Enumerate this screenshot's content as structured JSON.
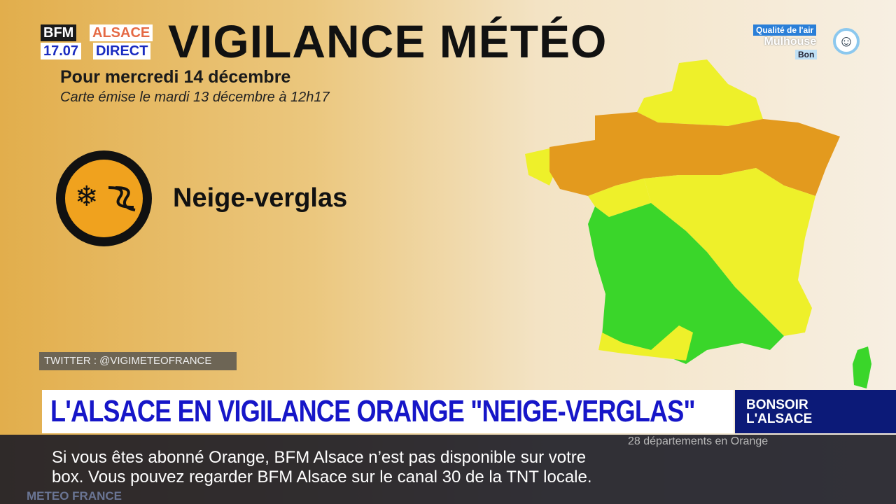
{
  "header": {
    "title": "VIGILANCE MÉTÉO",
    "subtitle": "Pour mercredi 14 décembre",
    "issued": "Carte émise le mardi 13 décembre à 12h17"
  },
  "logo": {
    "brand": "BFM",
    "region": "ALSACE",
    "time": "17.07",
    "live": "DIRECT"
  },
  "air_quality": {
    "label": "Qualité de l'air",
    "city": "Mulhouse",
    "level": "Bon",
    "icon": "smiley-icon"
  },
  "hazard": {
    "label": "Neige-verglas",
    "icon": "snow-ice-icon",
    "color": "#f0a21e"
  },
  "source": "TWITTER : @VIGIMETEOFRANCE",
  "map": {
    "caption": "28 départements en Orange",
    "colors": {
      "orange": "#e39a1e",
      "yellow": "#eef02a",
      "green": "#3ad62a"
    }
  },
  "banner": {
    "headline": "L'ALSACE EN VIGILANCE ORANGE \"NEIGE-VERGLAS\"",
    "show": "BONSOIR L'ALSACE"
  },
  "ticker": {
    "line1": "Si vous êtes abonné Orange, BFM Alsace n’est pas disponible sur votre",
    "line2": "box. Vous pouvez regarder BFM Alsace sur le canal 30 de la TNT locale."
  },
  "watermark": "METEO FRANCE"
}
